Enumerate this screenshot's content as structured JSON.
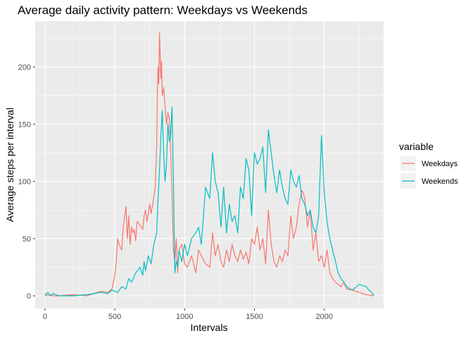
{
  "chart_data": {
    "type": "line",
    "title": "Average daily activity pattern: Weekdays vs Weekends",
    "xlabel": "Intervals",
    "ylabel": "Average steps per interval",
    "xlim": [
      -70,
      2425
    ],
    "ylim": [
      -11,
      240
    ],
    "xticks": [
      0,
      500,
      1000,
      1500,
      2000
    ],
    "yticks": [
      0,
      50,
      100,
      150,
      200
    ],
    "grid": true,
    "legend": {
      "title": "variable",
      "placement": "right"
    },
    "series": [
      {
        "name": "Weekdays",
        "color": "#F8766D",
        "x": [
          0,
          20,
          40,
          60,
          100,
          200,
          300,
          400,
          450,
          480,
          500,
          510,
          520,
          530,
          550,
          560,
          580,
          590,
          600,
          610,
          620,
          630,
          640,
          650,
          660,
          680,
          700,
          710,
          720,
          730,
          740,
          750,
          760,
          780,
          790,
          800,
          805,
          810,
          815,
          820,
          830,
          835,
          840,
          850,
          860,
          870,
          880,
          890,
          900,
          910,
          920,
          930,
          940,
          950,
          960,
          980,
          1000,
          1020,
          1050,
          1080,
          1100,
          1120,
          1150,
          1180,
          1200,
          1220,
          1240,
          1260,
          1280,
          1300,
          1320,
          1340,
          1360,
          1380,
          1400,
          1420,
          1440,
          1460,
          1480,
          1500,
          1520,
          1540,
          1560,
          1580,
          1600,
          1620,
          1640,
          1660,
          1680,
          1700,
          1720,
          1740,
          1760,
          1780,
          1800,
          1820,
          1840,
          1850,
          1860,
          1880,
          1900,
          1920,
          1940,
          1960,
          1980,
          2000,
          2020,
          2040,
          2060,
          2080,
          2100,
          2120,
          2140,
          2160,
          2200,
          2250,
          2300,
          2355
        ],
        "y": [
          2,
          0,
          1,
          0,
          0,
          1,
          0,
          4,
          3,
          6,
          18,
          28,
          50,
          45,
          40,
          60,
          78,
          50,
          70,
          45,
          60,
          55,
          58,
          48,
          65,
          62,
          58,
          70,
          75,
          65,
          72,
          80,
          72,
          86,
          95,
          130,
          180,
          200,
          185,
          230,
          190,
          205,
          175,
          182,
          165,
          150,
          160,
          155,
          130,
          90,
          40,
          30,
          50,
          20,
          40,
          45,
          28,
          25,
          35,
          20,
          40,
          35,
          28,
          25,
          55,
          35,
          45,
          30,
          25,
          40,
          30,
          45,
          35,
          30,
          40,
          32,
          38,
          28,
          50,
          45,
          60,
          40,
          50,
          28,
          75,
          45,
          30,
          25,
          35,
          30,
          40,
          35,
          70,
          50,
          60,
          80,
          92,
          90,
          85,
          60,
          75,
          40,
          55,
          30,
          35,
          25,
          40,
          20,
          15,
          12,
          10,
          8,
          12,
          6,
          5,
          3,
          1,
          0
        ]
      },
      {
        "name": "Weekends",
        "color": "#00BFC4",
        "x": [
          0,
          20,
          40,
          60,
          100,
          200,
          300,
          400,
          450,
          480,
          500,
          520,
          550,
          580,
          600,
          620,
          650,
          680,
          700,
          710,
          720,
          740,
          760,
          780,
          800,
          810,
          820,
          830,
          840,
          850,
          860,
          870,
          880,
          890,
          900,
          910,
          920,
          930,
          940,
          950,
          960,
          980,
          1000,
          1020,
          1050,
          1080,
          1100,
          1120,
          1150,
          1180,
          1200,
          1220,
          1240,
          1260,
          1280,
          1300,
          1320,
          1340,
          1360,
          1380,
          1400,
          1420,
          1440,
          1460,
          1480,
          1500,
          1520,
          1540,
          1560,
          1580,
          1600,
          1620,
          1640,
          1660,
          1680,
          1700,
          1720,
          1740,
          1760,
          1780,
          1800,
          1820,
          1840,
          1860,
          1880,
          1900,
          1920,
          1940,
          1960,
          1980,
          2000,
          2020,
          2040,
          2060,
          2080,
          2100,
          2120,
          2140,
          2160,
          2200,
          2250,
          2300,
          2320,
          2340,
          2355
        ],
        "y": [
          0,
          3,
          0,
          2,
          0,
          0,
          1,
          3,
          2,
          5,
          4,
          3,
          8,
          6,
          15,
          12,
          20,
          25,
          18,
          30,
          22,
          35,
          28,
          45,
          55,
          85,
          110,
          140,
          162,
          125,
          100,
          115,
          150,
          135,
          140,
          165,
          100,
          20,
          30,
          25,
          40,
          30,
          45,
          35,
          50,
          55,
          60,
          45,
          95,
          85,
          125,
          100,
          90,
          60,
          95,
          55,
          80,
          65,
          70,
          55,
          95,
          85,
          120,
          110,
          70,
          125,
          115,
          120,
          130,
          90,
          145,
          125,
          105,
          90,
          110,
          95,
          85,
          80,
          110,
          100,
          95,
          105,
          85,
          80,
          70,
          75,
          60,
          55,
          70,
          140,
          90,
          65,
          50,
          40,
          30,
          20,
          15,
          12,
          8,
          5,
          10,
          8,
          5,
          3,
          0
        ]
      }
    ]
  }
}
